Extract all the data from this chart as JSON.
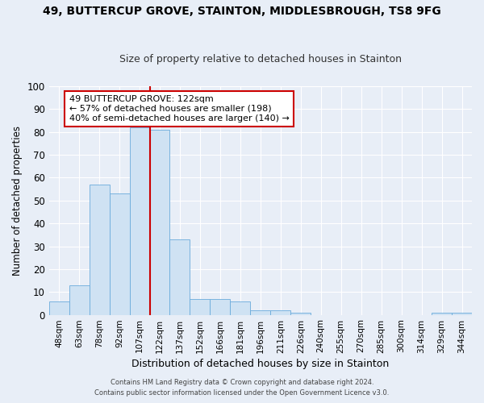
{
  "title_line1": "49, BUTTERCUP GROVE, STAINTON, MIDDLESBROUGH, TS8 9FG",
  "title_line2": "Size of property relative to detached houses in Stainton",
  "xlabel": "Distribution of detached houses by size in Stainton",
  "ylabel": "Number of detached properties",
  "bar_labels": [
    "48sqm",
    "63sqm",
    "78sqm",
    "92sqm",
    "107sqm",
    "122sqm",
    "137sqm",
    "152sqm",
    "166sqm",
    "181sqm",
    "196sqm",
    "211sqm",
    "226sqm",
    "240sqm",
    "255sqm",
    "270sqm",
    "285sqm",
    "300sqm",
    "314sqm",
    "329sqm",
    "344sqm"
  ],
  "bar_values": [
    6,
    13,
    57,
    53,
    82,
    81,
    33,
    7,
    7,
    6,
    2,
    2,
    1,
    0,
    0,
    0,
    0,
    0,
    0,
    1,
    1
  ],
  "bar_color": "#cfe2f3",
  "bar_edgecolor": "#6aabdb",
  "vline_color": "#cc0000",
  "annotation_title": "49 BUTTERCUP GROVE: 122sqm",
  "annotation_line2": "← 57% of detached houses are smaller (198)",
  "annotation_line3": "40% of semi-detached houses are larger (140) →",
  "annotation_box_edgecolor": "#cc0000",
  "ylim": [
    0,
    100
  ],
  "yticks": [
    0,
    10,
    20,
    30,
    40,
    50,
    60,
    70,
    80,
    90,
    100
  ],
  "footer_line1": "Contains HM Land Registry data © Crown copyright and database right 2024.",
  "footer_line2": "Contains public sector information licensed under the Open Government Licence v3.0.",
  "bg_color": "#e8eef7",
  "plot_bg_color": "#e8eef7"
}
